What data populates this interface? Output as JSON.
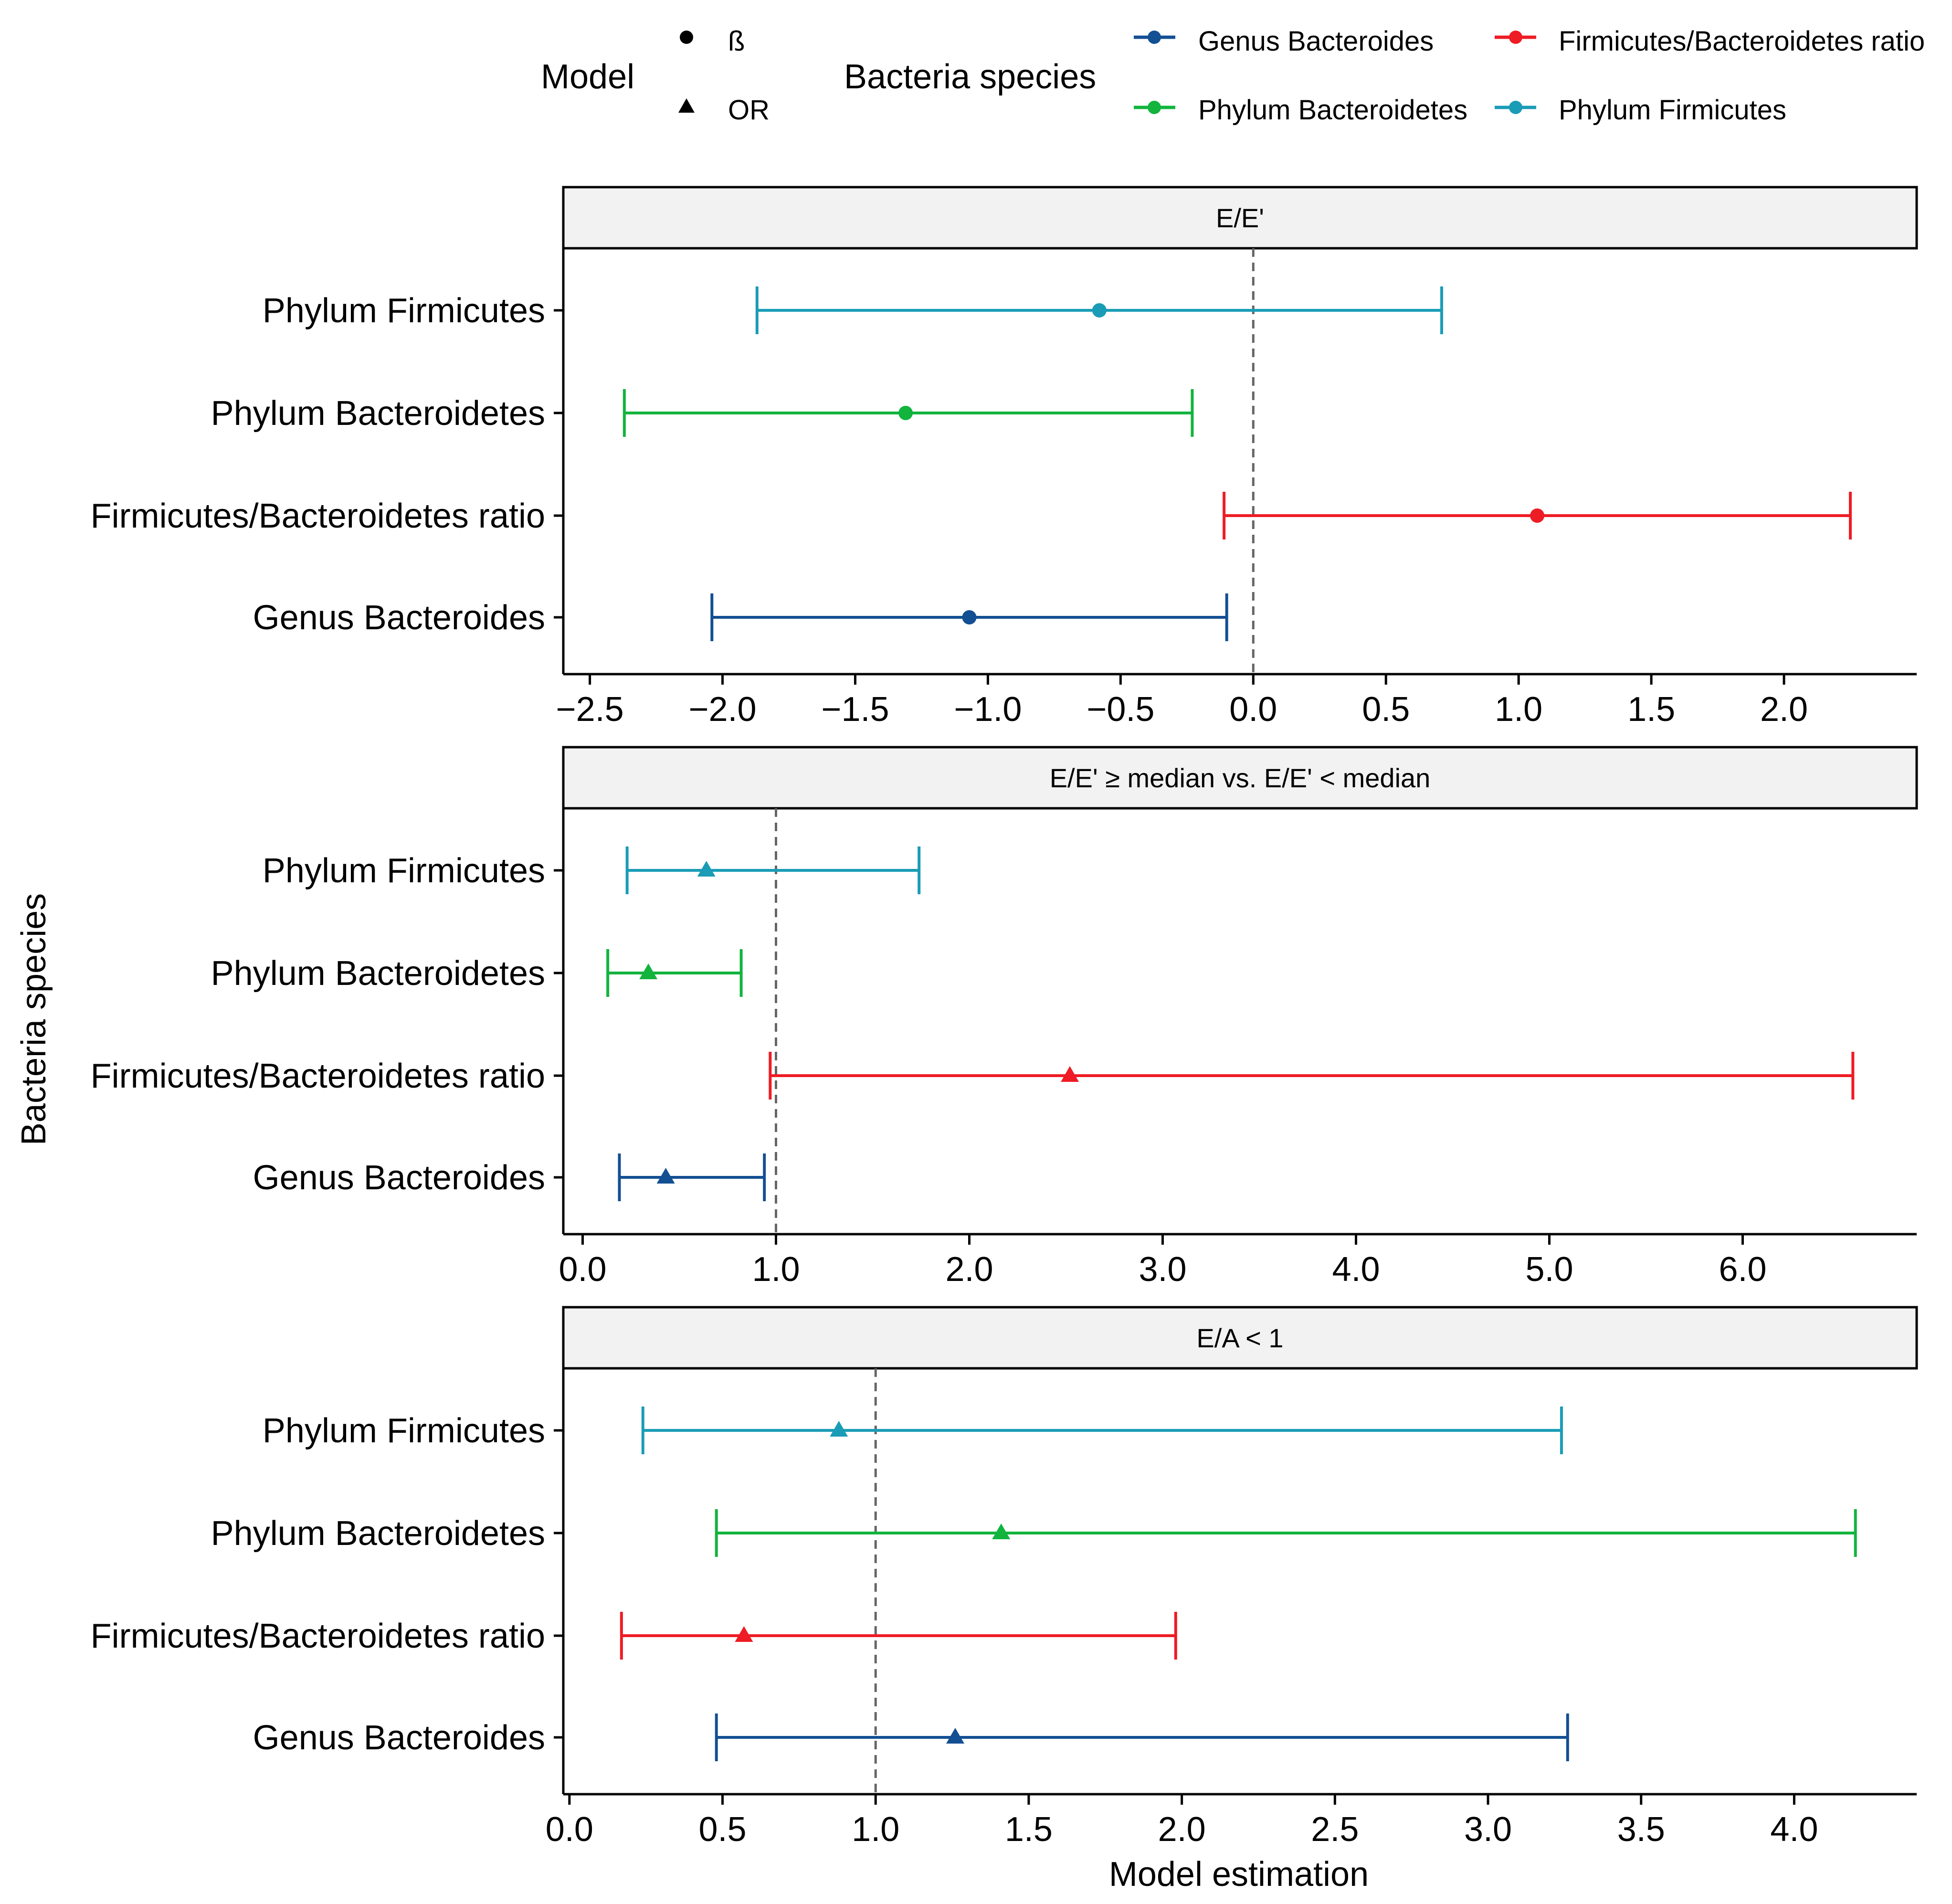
{
  "chart_data": [
    {
      "type": "forest",
      "title": "E/E'",
      "model": "ß",
      "reference": 0.0,
      "xlim": [
        -2.6,
        2.5
      ],
      "ticks": [
        -2.5,
        -2.0,
        -1.5,
        -1.0,
        -0.5,
        0.0,
        0.5,
        1.0,
        1.5,
        2.0
      ],
      "tick_labels": [
        "−2.5",
        "−2.0",
        "−1.5",
        "−1.0",
        "−0.5",
        "0.0",
        "0.5",
        "1.0",
        "1.5",
        "2.0"
      ],
      "rows": [
        {
          "label": "Phylum Firmicutes",
          "est": -0.58,
          "low": -1.87,
          "high": 0.71,
          "series": "Phylum Firmicutes"
        },
        {
          "label": "Phylum Bacteroidetes",
          "est": -1.31,
          "low": -2.37,
          "high": -0.23,
          "series": "Phylum Bacteroidetes"
        },
        {
          "label": "Firmicutes/Bacteroidetes ratio",
          "est": 1.07,
          "low": -0.11,
          "high": 2.25,
          "series": "Firmicutes/Bacteroidetes ratio"
        },
        {
          "label": "Genus Bacteroides",
          "est": -1.07,
          "low": -2.04,
          "high": -0.1,
          "series": "Genus Bacteroides"
        }
      ]
    },
    {
      "type": "forest",
      "title": "E/E' ≥ median vs. E/E' < median",
      "model": "OR",
      "reference": 1.0,
      "xlim": [
        -0.1,
        6.9
      ],
      "ticks": [
        0.0,
        1.0,
        2.0,
        3.0,
        4.0,
        5.0,
        6.0
      ],
      "tick_labels": [
        "0.0",
        "1.0",
        "2.0",
        "3.0",
        "4.0",
        "5.0",
        "6.0"
      ],
      "rows": [
        {
          "label": "Phylum Firmicutes",
          "est": 0.64,
          "low": 0.23,
          "high": 1.74,
          "series": "Phylum Firmicutes"
        },
        {
          "label": "Phylum Bacteroidetes",
          "est": 0.34,
          "low": 0.13,
          "high": 0.82,
          "series": "Phylum Bacteroidetes"
        },
        {
          "label": "Firmicutes/Bacteroidetes ratio",
          "est": 2.52,
          "low": 0.97,
          "high": 6.57,
          "series": "Firmicutes/Bacteroidetes ratio"
        },
        {
          "label": "Genus Bacteroides",
          "est": 0.43,
          "low": 0.19,
          "high": 0.94,
          "series": "Genus Bacteroides"
        }
      ]
    },
    {
      "type": "forest",
      "title": "E/A < 1",
      "model": "OR",
      "reference": 1.0,
      "xlim": [
        -0.02,
        4.4
      ],
      "ticks": [
        0.0,
        0.5,
        1.0,
        1.5,
        2.0,
        2.5,
        3.0,
        3.5,
        4.0
      ],
      "tick_labels": [
        "0.0",
        "0.5",
        "1.0",
        "1.5",
        "2.0",
        "2.5",
        "3.0",
        "3.5",
        "4.0"
      ],
      "rows": [
        {
          "label": "Phylum Firmicutes",
          "est": 0.88,
          "low": 0.24,
          "high": 3.24,
          "series": "Phylum Firmicutes"
        },
        {
          "label": "Phylum Bacteroidetes",
          "est": 1.41,
          "low": 0.48,
          "high": 4.2,
          "series": "Phylum Bacteroidetes"
        },
        {
          "label": "Firmicutes/Bacteroidetes ratio",
          "est": 0.57,
          "low": 0.17,
          "high": 1.98,
          "series": "Firmicutes/Bacteroidetes ratio"
        },
        {
          "label": "Genus Bacteroides",
          "est": 1.26,
          "low": 0.48,
          "high": 3.26,
          "series": "Genus Bacteroides"
        }
      ]
    }
  ],
  "legend": {
    "model_title": "Model",
    "model_items": [
      {
        "label": "ß",
        "shape": "circle"
      },
      {
        "label": "OR",
        "shape": "triangle"
      }
    ],
    "species_title": "Bacteria species",
    "species_items": [
      {
        "label": "Genus Bacteroides",
        "color": "#134f93"
      },
      {
        "label": "Firmicutes/Bacteroidetes ratio",
        "color": "#ee1c24"
      },
      {
        "label": "Phylum Bacteroidetes",
        "color": "#12b43e"
      },
      {
        "label": "Phylum Firmicutes",
        "color": "#1a9cb6"
      }
    ]
  },
  "axes": {
    "ylabel": "Bacteria species",
    "xlabel": "Model estimation"
  }
}
